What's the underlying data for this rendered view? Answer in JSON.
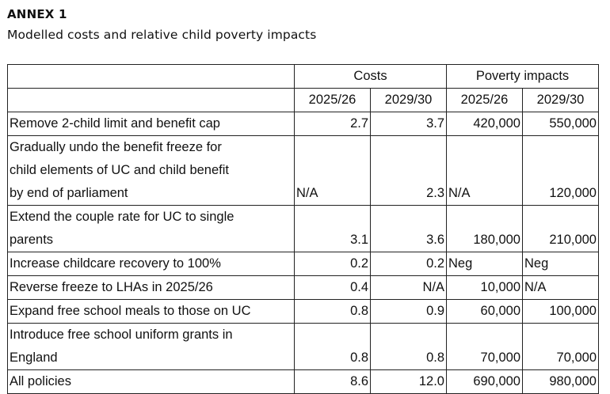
{
  "heading": "ANNEX 1",
  "subheading": "Modelled costs and relative child poverty impacts",
  "table": {
    "group_headers": {
      "costs": "Costs",
      "poverty": "Poverty impacts"
    },
    "years": [
      "2025/26",
      "2029/30",
      "2025/26",
      "2029/30"
    ],
    "rows": [
      {
        "label_lines": [
          "Remove 2-child limit and benefit cap"
        ],
        "values": [
          "2.7",
          "3.7",
          "420,000",
          "550,000"
        ],
        "align": [
          "num",
          "num",
          "num",
          "num"
        ]
      },
      {
        "label_lines": [
          "Gradually undo the benefit freeze for",
          "child elements of UC and child benefit",
          "by end of parliament"
        ],
        "values": [
          "N/A",
          "2.3",
          "N/A",
          "120,000"
        ],
        "align": [
          "lft",
          "num",
          "lft",
          "num"
        ]
      },
      {
        "label_lines": [
          "Extend the couple rate for UC to single",
          "parents"
        ],
        "values": [
          "3.1",
          "3.6",
          "180,000",
          "210,000"
        ],
        "align": [
          "num",
          "num",
          "num",
          "num"
        ]
      },
      {
        "label_lines": [
          "Increase childcare recovery to 100%"
        ],
        "values": [
          "0.2",
          "0.2",
          "Neg",
          "Neg"
        ],
        "align": [
          "num",
          "num",
          "lft",
          "lft"
        ]
      },
      {
        "label_lines": [
          "Reverse freeze to LHAs in 2025/26"
        ],
        "values": [
          "0.4",
          "N/A",
          "10,000",
          "N/A"
        ],
        "align": [
          "num",
          "num",
          "num",
          "lft"
        ]
      },
      {
        "label_lines": [
          "Expand free school meals to those on UC"
        ],
        "values": [
          "0.8",
          "0.9",
          "60,000",
          "100,000"
        ],
        "align": [
          "num",
          "num",
          "num",
          "num"
        ]
      },
      {
        "label_lines": [
          "Introduce free school uniform grants in",
          "England"
        ],
        "values": [
          "0.8",
          "0.8",
          "70,000",
          "70,000"
        ],
        "align": [
          "num",
          "num",
          "num",
          "num"
        ]
      },
      {
        "label_lines": [
          "All policies"
        ],
        "values": [
          "8.6",
          "12.0",
          "690,000",
          "980,000"
        ],
        "align": [
          "num",
          "num",
          "num",
          "num"
        ]
      }
    ]
  }
}
